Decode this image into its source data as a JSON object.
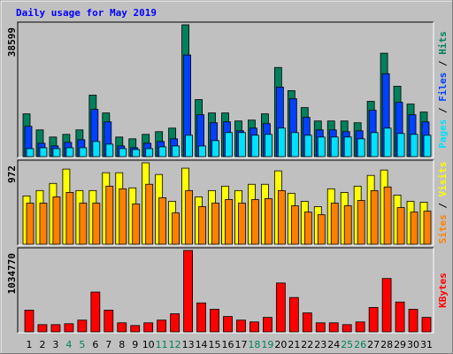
{
  "title": "Daily usage for May 2019",
  "categories": [
    "1",
    "2",
    "3",
    "4",
    "5",
    "6",
    "7",
    "8",
    "9",
    "10",
    "11",
    "12",
    "13",
    "14",
    "15",
    "16",
    "17",
    "18",
    "19",
    "20",
    "21",
    "22",
    "23",
    "24",
    "25",
    "26",
    "27",
    "28",
    "29",
    "30",
    "31"
  ],
  "weekend": [
    "4",
    "5",
    "11",
    "12",
    "18",
    "19",
    "25",
    "26"
  ],
  "weekend_color": "#00805c",
  "label_separator": " / ",
  "chart_data": [
    {
      "type": "bar",
      "ylim": [
        0,
        38599
      ],
      "yticks": [
        38599
      ],
      "series": [
        {
          "name": "Hits",
          "color": "#00805c",
          "values": [
            12528,
            7830,
            5742,
            6525,
            7830,
            18009,
            12789,
            5742,
            5220,
            6525,
            7308,
            8352,
            38599,
            16704,
            12789,
            12789,
            10440,
            10701,
            12528,
            26100,
            19314,
            14355,
            10440,
            10440,
            10440,
            9918,
            16182,
            30276,
            20619,
            15399,
            13050
          ]
        },
        {
          "name": "Files",
          "color": "#0040ff",
          "values": [
            8874,
            3915,
            3132,
            4176,
            4959,
            13833,
            10179,
            3132,
            2610,
            3915,
            4437,
            5220,
            29754,
            12267,
            9918,
            10179,
            7569,
            8352,
            9657,
            20358,
            16965,
            11484,
            7830,
            7830,
            7308,
            7569,
            13572,
            24273,
            15921,
            12267,
            10179
          ]
        },
        {
          "name": "Pages",
          "color": "#00e0ff",
          "values": [
            2349,
            2610,
            2349,
            2610,
            2610,
            4437,
            3654,
            2349,
            2088,
            2349,
            2871,
            3132,
            6264,
            3132,
            4698,
            7047,
            7047,
            6264,
            6525,
            8352,
            7047,
            6264,
            5742,
            5742,
            5742,
            5220,
            7047,
            8352,
            6786,
            6525,
            6264
          ]
        }
      ]
    },
    {
      "type": "bar",
      "ylim": [
        0,
        972
      ],
      "yticks": [
        972
      ],
      "series": [
        {
          "name": "Visits",
          "color": "#ffff00",
          "values": [
            577,
            641,
            726,
            897,
            641,
            641,
            854,
            854,
            673,
            972,
            833,
            513,
            908,
            566,
            641,
            694,
            641,
            716,
            716,
            876,
            609,
            513,
            449,
            662,
            619,
            694,
            822,
            886,
            587,
            513,
            502
          ]
        },
        {
          "name": "Sites",
          "color": "#ff8000",
          "values": [
            491,
            491,
            566,
            619,
            491,
            491,
            694,
            662,
            481,
            716,
            555,
            374,
            641,
            449,
            491,
            534,
            491,
            534,
            545,
            641,
            459,
            384,
            352,
            491,
            459,
            523,
            641,
            684,
            438,
            384,
            395
          ]
        }
      ]
    },
    {
      "type": "bar",
      "ylim": [
        0,
        1034770
      ],
      "yticks": [
        1034770
      ],
      "series": [
        {
          "name": "KBytes",
          "color": "#ff0000",
          "values": [
            275928,
            91976,
            91976,
            103473,
            149461,
            505868,
            275928,
            114970,
            80479,
            114970,
            149461,
            229940,
            1034770,
            367904,
            287425,
            195449,
            149461,
            126467,
            183952,
            620838,
            436886,
            241437,
            114970,
            114970,
            91976,
            126467,
            310419,
            678323,
            379401,
            287425,
            183952
          ]
        }
      ]
    }
  ]
}
